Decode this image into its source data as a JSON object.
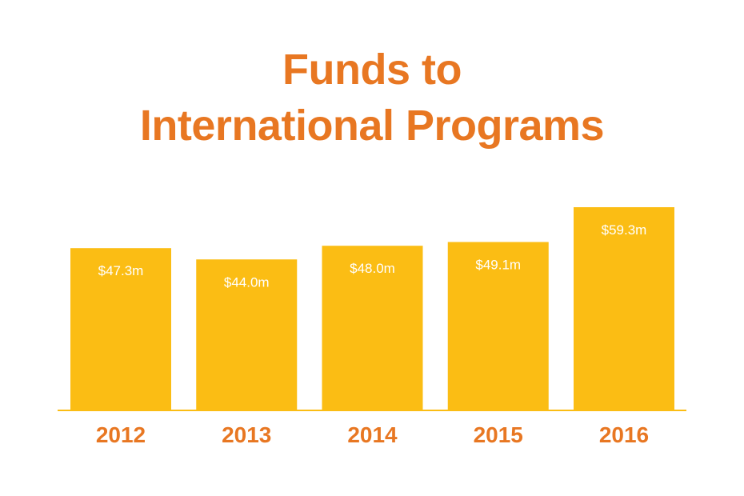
{
  "title": {
    "line1": "Funds to",
    "line2": "International Programs"
  },
  "colors": {
    "title": "#e87722",
    "bar": "#fbbd14",
    "axis": "#fbbd14",
    "bar_label": "#ffffff",
    "tick_label": "#e87722"
  },
  "chart_data": {
    "type": "bar",
    "title": "Funds to International Programs",
    "categories": [
      "2012",
      "2013",
      "2014",
      "2015",
      "2016"
    ],
    "values": [
      47.3,
      44.0,
      48.0,
      49.1,
      59.3
    ],
    "value_labels": [
      "$47.3m",
      "$44.0m",
      "$48.0m",
      "$49.1m",
      "$59.3m"
    ],
    "xlabel": "",
    "ylabel": "",
    "ylim": [
      0,
      59.3
    ],
    "grid": false,
    "legend": "none"
  }
}
